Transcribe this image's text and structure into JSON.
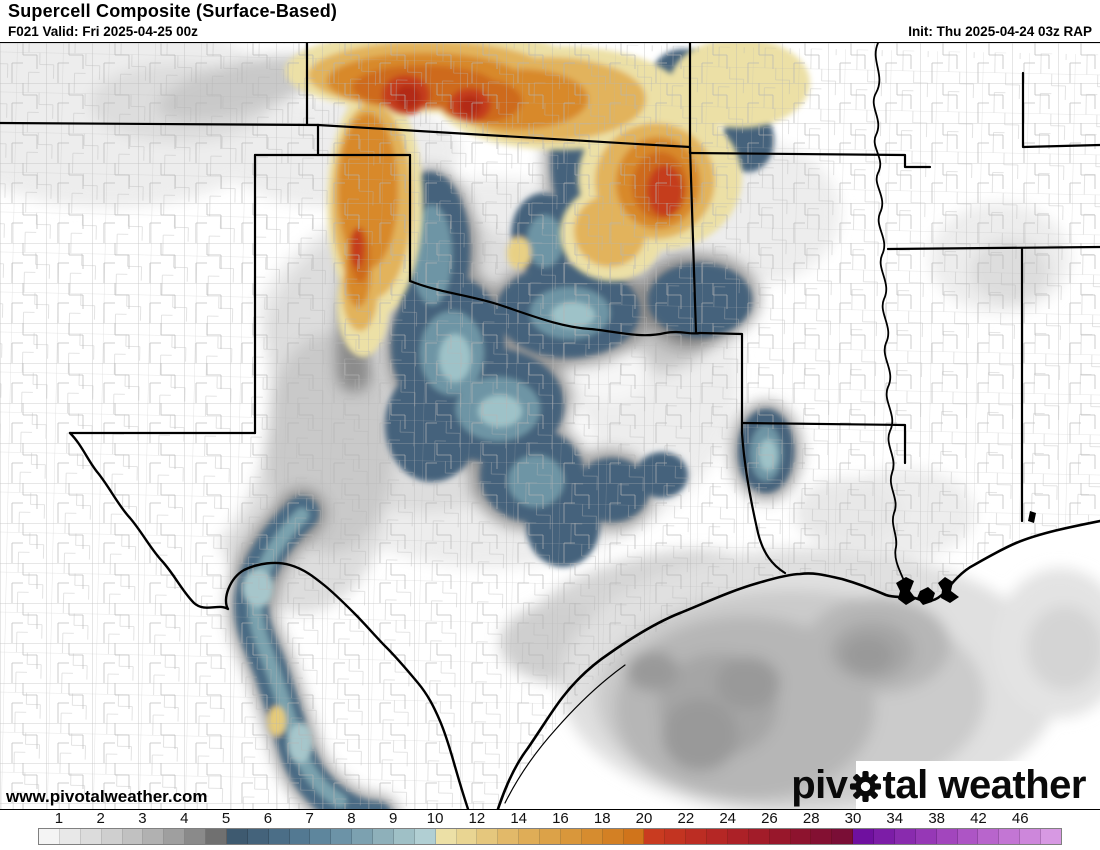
{
  "header": {
    "title": "Supercell Composite (Surface-Based)",
    "forecast_hour_valid": "F021 Valid: Fri 2025-04-25 00z",
    "init": "Init: Thu 2025-04-24 03z RAP"
  },
  "map": {
    "watermark": "www.pivotalweather.com",
    "logo_prefix": "piv",
    "logo_suffix": "tal weather",
    "logo_gear_icon": "gear-icon"
  },
  "colorbar": {
    "ticks": [
      {
        "label": "1",
        "pct": 2.04
      },
      {
        "label": "2",
        "pct": 6.12
      },
      {
        "label": "3",
        "pct": 10.2
      },
      {
        "label": "4",
        "pct": 14.29
      },
      {
        "label": "5",
        "pct": 18.37
      },
      {
        "label": "6",
        "pct": 22.45
      },
      {
        "label": "7",
        "pct": 26.53
      },
      {
        "label": "8",
        "pct": 30.61
      },
      {
        "label": "9",
        "pct": 34.69
      },
      {
        "label": "10",
        "pct": 38.78
      },
      {
        "label": "12",
        "pct": 42.86
      },
      {
        "label": "14",
        "pct": 46.94
      },
      {
        "label": "16",
        "pct": 51.02
      },
      {
        "label": "18",
        "pct": 55.1
      },
      {
        "label": "20",
        "pct": 59.18
      },
      {
        "label": "22",
        "pct": 63.27
      },
      {
        "label": "24",
        "pct": 67.35
      },
      {
        "label": "26",
        "pct": 71.43
      },
      {
        "label": "28",
        "pct": 75.51
      },
      {
        "label": "30",
        "pct": 79.59
      },
      {
        "label": "34",
        "pct": 83.67
      },
      {
        "label": "38",
        "pct": 87.76
      },
      {
        "label": "42",
        "pct": 91.84
      },
      {
        "label": "46",
        "pct": 95.92
      }
    ],
    "segment_colors": [
      "#f4f4f4",
      "#e8e8e8",
      "#dcdcdc",
      "#cfcfcf",
      "#c1c1c1",
      "#b1b1b1",
      "#9f9f9f",
      "#8a8a8a",
      "#707070",
      "#3e5a70",
      "#44637b",
      "#4b6e87",
      "#537992",
      "#5e869d",
      "#6c93a7",
      "#7ca1b0",
      "#8eb0ba",
      "#9fc0c6",
      "#b1cfd3",
      "#ece0a6",
      "#e9d592",
      "#e5c77d",
      "#e2b969",
      "#dfad57",
      "#dca248",
      "#d9973b",
      "#d68c2f",
      "#d38024",
      "#d0741b",
      "#c93b20",
      "#c33421",
      "#bc2d23",
      "#b52725",
      "#ac2127",
      "#a21c29",
      "#98172b",
      "#8d132e",
      "#831032",
      "#7a0e36",
      "#6f109f",
      "#7c1da7",
      "#892bae",
      "#9638b6",
      "#a246bd",
      "#ad55c5",
      "#b865cc",
      "#c376d4",
      "#cd87db",
      "#d799e3"
    ]
  },
  "palette": {
    "land": "#ffffff",
    "county_line": "#b5b5b5",
    "state_line": "#000000",
    "accent_red_core": "#c53e1d",
    "accent_blue_band": "#44627c"
  }
}
